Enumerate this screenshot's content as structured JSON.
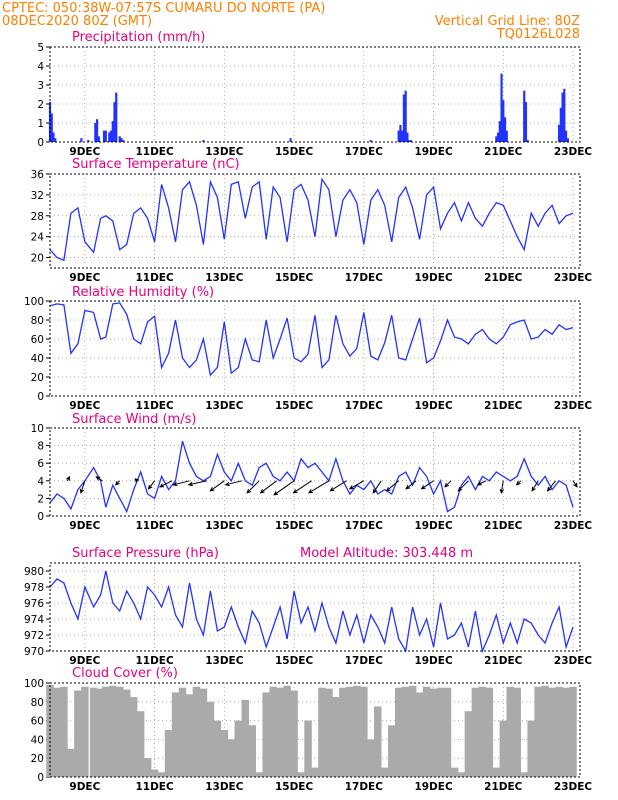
{
  "header": {
    "left_line1": "CPTEC:   050:38W-07:57S  CUMARU DO NORTE (PA)",
    "left_line2": "08DEC2020 80Z (GMT)",
    "right_line1": "Vertical Grid Line: 80Z",
    "right_line2": "TQ0126L028"
  },
  "x_axis": {
    "tick_labels": [
      "9DEC",
      "11DEC",
      "13DEC",
      "15DEC",
      "17DEC",
      "19DEC",
      "21DEC",
      "23DEC"
    ]
  },
  "chart_data": [
    {
      "type": "bar",
      "title": "Precipitation (mm/h)",
      "ylim": [
        0,
        5
      ],
      "yticks": [
        0,
        1,
        2,
        3,
        4,
        5
      ],
      "grid": true,
      "color": "#2233ff",
      "x_units": "days since 8DEC2020 00Z (ticks at 9DEC, 11DEC, ... 23DEC)",
      "x": [
        0.0,
        0.05,
        0.1,
        0.15,
        0.9,
        1.1,
        1.3,
        1.35,
        1.4,
        1.55,
        1.6,
        1.7,
        1.75,
        1.8,
        1.85,
        1.9,
        2.0,
        2.05,
        2.1,
        4.4,
        6.9,
        9.2,
        10.0,
        10.05,
        10.1,
        10.15,
        10.2,
        10.25,
        10.3,
        10.35,
        12.8,
        12.85,
        12.9,
        12.95,
        13.0,
        13.05,
        13.1,
        13.6,
        13.65,
        13.7,
        14.6,
        14.65,
        14.7,
        14.75,
        14.8,
        14.85
      ],
      "values": [
        2.1,
        1.5,
        0.5,
        0.2,
        0.2,
        0.1,
        1.0,
        1.2,
        0.3,
        0.6,
        0.6,
        0.5,
        0.6,
        1.1,
        2.1,
        2.6,
        0.3,
        0.2,
        0.1,
        0.1,
        0.2,
        0.1,
        0.6,
        0.9,
        0.6,
        2.5,
        2.7,
        0.5,
        0.1,
        0.1,
        0.3,
        0.5,
        1.1,
        3.6,
        2.2,
        1.3,
        0.6,
        2.7,
        2.1,
        0.1,
        0.9,
        1.8,
        2.6,
        2.8,
        0.6,
        0.2
      ]
    },
    {
      "type": "line",
      "title": "Surface Temperature (nC)",
      "ylim": [
        18,
        36
      ],
      "yticks": [
        20,
        24,
        28,
        32,
        36
      ],
      "grid": true,
      "color": "#2233ff",
      "x": [
        0.0,
        0.2,
        0.4,
        0.6,
        0.8,
        1.0,
        1.25,
        1.45,
        1.6,
        1.8,
        2.0,
        2.2,
        2.4,
        2.6,
        2.8,
        3.0,
        3.2,
        3.4,
        3.6,
        3.8,
        4.0,
        4.2,
        4.4,
        4.6,
        4.8,
        5.0,
        5.2,
        5.4,
        5.6,
        5.8,
        6.0,
        6.2,
        6.4,
        6.6,
        6.8,
        7.0,
        7.2,
        7.4,
        7.6,
        7.8,
        8.0,
        8.2,
        8.4,
        8.6,
        8.8,
        9.0,
        9.2,
        9.4,
        9.6,
        9.8,
        10.0,
        10.2,
        10.4,
        10.6,
        10.8,
        11.0,
        11.2,
        11.4,
        11.6,
        11.8,
        12.0,
        12.2,
        12.4,
        12.6,
        12.8,
        13.0,
        13.2,
        13.4,
        13.6,
        13.8,
        14.0,
        14.2,
        14.4,
        14.6,
        14.8,
        15.0
      ],
      "values": [
        21.5,
        20.0,
        19.5,
        28.5,
        29.5,
        23.0,
        21.0,
        27.5,
        28.0,
        27.0,
        21.5,
        22.5,
        28.5,
        29.5,
        27.5,
        23.0,
        34.0,
        29.5,
        23.0,
        33.0,
        34.5,
        30.0,
        22.5,
        34.5,
        31.5,
        23.5,
        34.0,
        34.5,
        27.5,
        33.5,
        34.5,
        23.5,
        33.5,
        31.5,
        23.0,
        33.0,
        34.0,
        31.0,
        24.0,
        35.0,
        33.0,
        24.0,
        31.0,
        33.0,
        30.5,
        22.5,
        31.0,
        33.0,
        30.0,
        23.0,
        31.5,
        33.5,
        29.5,
        23.5,
        32.0,
        33.5,
        25.5,
        28.5,
        30.5,
        27.0,
        30.5,
        27.5,
        26.0,
        28.5,
        30.5,
        30.0,
        27.0,
        24.0,
        21.5,
        28.5,
        26.0,
        28.5,
        30.0,
        26.5,
        28.0,
        28.5
      ]
    },
    {
      "type": "line",
      "title": "Relative Humidity (%)",
      "ylim": [
        0,
        100
      ],
      "yticks": [
        0,
        20,
        40,
        60,
        80,
        100
      ],
      "grid": true,
      "color": "#2233ff",
      "x": [
        0.0,
        0.2,
        0.4,
        0.6,
        0.8,
        1.0,
        1.25,
        1.45,
        1.6,
        1.8,
        2.0,
        2.2,
        2.4,
        2.6,
        2.8,
        3.0,
        3.2,
        3.4,
        3.6,
        3.8,
        4.0,
        4.2,
        4.4,
        4.6,
        4.8,
        5.0,
        5.2,
        5.4,
        5.6,
        5.8,
        6.0,
        6.2,
        6.4,
        6.6,
        6.8,
        7.0,
        7.2,
        7.4,
        7.6,
        7.8,
        8.0,
        8.2,
        8.4,
        8.6,
        8.8,
        9.0,
        9.2,
        9.4,
        9.6,
        9.8,
        10.0,
        10.2,
        10.4,
        10.6,
        10.8,
        11.0,
        11.2,
        11.4,
        11.6,
        11.8,
        12.0,
        12.2,
        12.4,
        12.6,
        12.8,
        13.0,
        13.2,
        13.4,
        13.6,
        13.8,
        14.0,
        14.2,
        14.4,
        14.6,
        14.8,
        15.0
      ],
      "values": [
        95.0,
        97.0,
        96.0,
        45.0,
        55.0,
        90.0,
        88.0,
        60.0,
        62.0,
        97.0,
        98.0,
        86.0,
        60.0,
        55.0,
        78.0,
        84.0,
        30.0,
        45.0,
        80.0,
        40.0,
        30.0,
        38.0,
        60.0,
        22.0,
        30.0,
        78.0,
        24.0,
        30.0,
        60.0,
        38.0,
        36.0,
        80.0,
        40.0,
        60.0,
        82.0,
        40.0,
        36.0,
        44.0,
        85.0,
        30.0,
        38.0,
        85.0,
        55.0,
        42.0,
        50.0,
        88.0,
        42.0,
        38.0,
        56.0,
        85.0,
        40.0,
        38.0,
        60.0,
        82.0,
        35.0,
        40.0,
        58.0,
        80.0,
        62.0,
        60.0,
        55.0,
        65.0,
        70.0,
        60.0,
        55.0,
        62.0,
        75.0,
        78.0,
        80.0,
        60.0,
        62.0,
        70.0,
        65.0,
        75.0,
        70.0,
        72.0
      ]
    },
    {
      "type": "line",
      "title": "Surface Wind (m/s)",
      "ylim": [
        0,
        10
      ],
      "yticks": [
        0,
        2,
        4,
        6,
        8,
        10
      ],
      "grid": true,
      "color": "#2233ff",
      "x": [
        0.0,
        0.2,
        0.4,
        0.6,
        0.8,
        1.0,
        1.25,
        1.45,
        1.6,
        1.8,
        2.0,
        2.2,
        2.4,
        2.6,
        2.8,
        3.0,
        3.2,
        3.4,
        3.6,
        3.8,
        4.0,
        4.2,
        4.4,
        4.6,
        4.8,
        5.0,
        5.2,
        5.4,
        5.6,
        5.8,
        6.0,
        6.2,
        6.4,
        6.6,
        6.8,
        7.0,
        7.2,
        7.4,
        7.6,
        7.8,
        8.0,
        8.2,
        8.4,
        8.6,
        8.8,
        9.0,
        9.2,
        9.4,
        9.6,
        9.8,
        10.0,
        10.2,
        10.4,
        10.6,
        10.8,
        11.0,
        11.2,
        11.4,
        11.6,
        11.8,
        12.0,
        12.2,
        12.4,
        12.6,
        12.8,
        13.0,
        13.2,
        13.4,
        13.6,
        13.8,
        14.0,
        14.2,
        14.4,
        14.6,
        14.8,
        15.0
      ],
      "values": [
        1.5,
        2.5,
        2.0,
        0.8,
        3.0,
        4.0,
        5.5,
        4.0,
        1.0,
        3.5,
        2.0,
        0.5,
        3.0,
        5.0,
        2.5,
        2.0,
        4.5,
        3.0,
        4.0,
        8.5,
        6.0,
        4.5,
        4.0,
        4.5,
        7.0,
        5.0,
        4.0,
        6.0,
        4.0,
        3.5,
        5.5,
        6.0,
        4.5,
        4.0,
        5.0,
        4.0,
        6.5,
        5.5,
        6.0,
        5.0,
        4.0,
        6.5,
        4.0,
        2.5,
        3.5,
        3.0,
        4.0,
        2.5,
        3.0,
        2.5,
        4.5,
        5.0,
        3.5,
        5.5,
        4.5,
        2.5,
        4.0,
        0.5,
        1.0,
        3.5,
        4.5,
        3.0,
        4.5,
        4.0,
        5.0,
        4.5,
        4.0,
        4.5,
        6.5,
        4.5,
        3.5,
        4.5,
        3.0,
        4.0,
        3.5,
        1.0
      ],
      "wind_barbs": {
        "x": [
          0.5,
          1.0,
          1.5,
          2.0,
          2.5,
          3.0,
          3.5,
          4.0,
          4.5,
          5.0,
          5.5,
          6.0,
          6.5,
          7.0,
          7.5,
          8.0,
          8.5,
          9.0,
          9.5,
          10.0,
          10.5,
          11.0,
          11.5,
          12.0,
          12.5,
          13.0,
          13.5,
          14.0,
          14.5,
          15.0
        ],
        "u": [
          0.5,
          -1.0,
          -1.5,
          -1.0,
          -0.5,
          -1.5,
          -3.0,
          -4.0,
          -4.5,
          -3.5,
          -4.0,
          -3.0,
          -4.0,
          -5.0,
          -4.5,
          -5.0,
          -4.0,
          -3.5,
          -2.0,
          -3.0,
          -2.5,
          -3.0,
          -1.5,
          -2.5,
          -2.0,
          -0.5,
          -1.0,
          -1.5,
          -2.0,
          1.0
        ],
        "v": [
          1.0,
          -3.0,
          1.0,
          -1.0,
          0.5,
          -2.0,
          -1.5,
          -1.0,
          -1.0,
          -2.5,
          -1.0,
          -3.0,
          -3.0,
          -3.5,
          -3.0,
          -3.0,
          -2.5,
          -2.0,
          -3.0,
          -2.5,
          -2.0,
          -2.0,
          -1.5,
          -2.5,
          -1.0,
          -3.0,
          -1.0,
          -2.5,
          -2.5,
          -1.5
        ]
      }
    },
    {
      "type": "line",
      "title": "Surface Pressure (hPa)",
      "subtitle": "Model Altitude: 303.448 m",
      "ylim": [
        970,
        981
      ],
      "yticks": [
        970,
        972,
        974,
        976,
        978,
        980
      ],
      "grid": true,
      "color": "#2233ff",
      "x": [
        0.0,
        0.2,
        0.4,
        0.6,
        0.8,
        1.0,
        1.25,
        1.45,
        1.6,
        1.8,
        2.0,
        2.2,
        2.4,
        2.6,
        2.8,
        3.0,
        3.2,
        3.4,
        3.6,
        3.8,
        4.0,
        4.2,
        4.4,
        4.6,
        4.8,
        5.0,
        5.2,
        5.4,
        5.6,
        5.8,
        6.0,
        6.2,
        6.4,
        6.6,
        6.8,
        7.0,
        7.2,
        7.4,
        7.6,
        7.8,
        8.0,
        8.2,
        8.4,
        8.6,
        8.8,
        9.0,
        9.2,
        9.4,
        9.6,
        9.8,
        10.0,
        10.2,
        10.4,
        10.6,
        10.8,
        11.0,
        11.2,
        11.4,
        11.6,
        11.8,
        12.0,
        12.2,
        12.4,
        12.6,
        12.8,
        13.0,
        13.2,
        13.4,
        13.6,
        13.8,
        14.0,
        14.2,
        14.4,
        14.6,
        14.8,
        15.0
      ],
      "values": [
        978.0,
        979.0,
        978.5,
        976.0,
        974.0,
        978.0,
        975.5,
        977.0,
        980.0,
        976.0,
        975.0,
        977.5,
        976.0,
        974.0,
        978.0,
        977.0,
        975.5,
        978.0,
        974.5,
        973.0,
        978.5,
        974.0,
        972.0,
        977.5,
        972.5,
        973.0,
        975.5,
        973.0,
        971.0,
        975.0,
        973.5,
        970.5,
        973.0,
        975.5,
        971.5,
        977.5,
        973.5,
        975.5,
        972.5,
        976.0,
        973.0,
        971.0,
        975.0,
        972.0,
        974.5,
        971.0,
        974.5,
        973.0,
        971.0,
        975.5,
        971.5,
        970.0,
        975.5,
        972.0,
        974.0,
        970.5,
        976.0,
        971.5,
        972.0,
        973.5,
        970.5,
        975.0,
        970.0,
        972.0,
        974.5,
        971.0,
        973.5,
        971.0,
        974.0,
        973.5,
        972.0,
        971.0,
        973.5,
        975.5,
        970.5,
        973.0
      ]
    },
    {
      "type": "bar",
      "title": "Cloud Cover (%)",
      "ylim": [
        0,
        100
      ],
      "yticks": [
        0,
        20,
        40,
        60,
        80,
        100
      ],
      "grid": true,
      "color": "#aaaaaa",
      "x": [
        0.0,
        0.2,
        0.4,
        0.6,
        0.8,
        1.0,
        1.25,
        1.45,
        1.6,
        1.8,
        2.0,
        2.2,
        2.4,
        2.6,
        2.8,
        3.0,
        3.2,
        3.4,
        3.6,
        3.8,
        4.0,
        4.2,
        4.4,
        4.6,
        4.8,
        5.0,
        5.2,
        5.4,
        5.6,
        5.8,
        6.0,
        6.2,
        6.4,
        6.6,
        6.8,
        7.0,
        7.2,
        7.4,
        7.6,
        7.8,
        8.0,
        8.2,
        8.4,
        8.6,
        8.8,
        9.0,
        9.2,
        9.4,
        9.6,
        9.8,
        10.0,
        10.2,
        10.4,
        10.6,
        10.8,
        11.0,
        11.2,
        11.4,
        11.6,
        11.8,
        12.0,
        12.2,
        12.4,
        12.6,
        12.8,
        13.0,
        13.2,
        13.4,
        13.6,
        13.8,
        14.0,
        14.2,
        14.4,
        14.6,
        14.8,
        15.0
      ],
      "values": [
        98.0,
        95.0,
        96.0,
        30.0,
        92.0,
        96.0,
        95.0,
        94.0,
        96.0,
        97.0,
        96.0,
        93.0,
        85.0,
        70.0,
        20.0,
        8.0,
        5.0,
        50.0,
        90.0,
        95.0,
        88.0,
        96.0,
        94.0,
        80.0,
        60.0,
        50.0,
        40.0,
        60.0,
        82.0,
        55.0,
        5.0,
        90.0,
        96.0,
        95.0,
        97.0,
        92.0,
        5.0,
        60.0,
        10.0,
        95.0,
        94.0,
        85.0,
        95.0,
        96.0,
        97.0,
        96.0,
        40.0,
        75.0,
        10.0,
        55.0,
        95.0,
        96.0,
        97.0,
        90.0,
        96.0,
        94.0,
        95.0,
        95.0,
        10.0,
        5.0,
        70.0,
        95.0,
        96.0,
        95.0,
        10.0,
        60.0,
        96.0,
        95.0,
        5.0,
        60.0,
        96.0,
        97.0,
        95.0,
        96.0,
        95.0,
        96.0
      ]
    }
  ]
}
